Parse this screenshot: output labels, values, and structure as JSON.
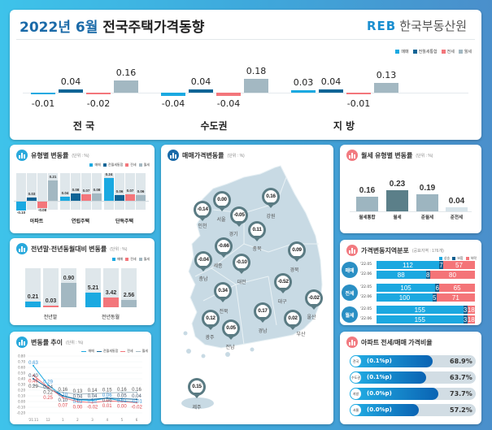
{
  "header": {
    "title_year": "2022년 6월",
    "title_main": "전국주택가격동향",
    "logo_mark": "REB",
    "logo_text": "한국부동산원"
  },
  "legend4": [
    "매매",
    "전월세통합",
    "전세",
    "월세"
  ],
  "colors": {
    "sale": "#1aa9e1",
    "combined": "#0f6496",
    "jeonse": "#f3767b",
    "monthly": "#a3b8c2",
    "up": "#1ba8e0",
    "flat": "#0e5e8e",
    "down": "#f47478"
  },
  "summary": {
    "groups": [
      {
        "name": "전 국",
        "values": [
          -0.01,
          0.04,
          -0.02,
          0.16
        ]
      },
      {
        "name": "수도권",
        "values": [
          -0.04,
          0.04,
          -0.04,
          0.18
        ]
      },
      {
        "name": "지 방",
        "values": [
          0.03,
          0.04,
          -0.01,
          0.13
        ]
      }
    ]
  },
  "type_card": {
    "title": "유형별 변동률",
    "unit": "(단위 : %)",
    "groups": [
      {
        "name": "아파트",
        "values": [
          -0.1,
          0.03,
          -0.08,
          0.21
        ]
      },
      {
        "name": "연립주택",
        "values": [
          0.04,
          0.08,
          0.07,
          0.08
        ]
      },
      {
        "name": "단독주택",
        "values": [
          0.24,
          0.06,
          0.07,
          0.06
        ]
      }
    ]
  },
  "yoy_card": {
    "title": "전년말·전년동월대비 변동률",
    "unit": "(단위 : %)",
    "legend": [
      "매매",
      "전세",
      "월세"
    ],
    "groups": [
      {
        "name": "전년말",
        "values": [
          0.21,
          0.03,
          0.9
        ]
      },
      {
        "name": "전년동월",
        "values": [
          5.21,
          3.42,
          2.56
        ]
      }
    ]
  },
  "trend_card": {
    "title": "변동률 추이",
    "unit": "(단위 : %)",
    "chart_data": {
      "type": "line",
      "x": [
        "'21.11",
        "12",
        "1",
        "2",
        "3",
        "4",
        "5",
        "6"
      ],
      "ylim": [
        -0.2,
        0.8
      ],
      "yticks": [
        "0.80",
        "0.70",
        "0.60",
        "0.50",
        "0.40",
        "0.30",
        "0.20",
        "0.10",
        "0.00",
        "-0.10",
        "-0.20"
      ],
      "series": [
        {
          "name": "매매",
          "values": [
            0.63,
            0.29,
            0.1,
            0.03,
            0.02,
            0.06,
            0.01,
            -0.01
          ]
        },
        {
          "name": "전월세통합",
          "values": [
            0.4,
            0.24,
            0.1,
            0.04,
            0.04,
            0.06,
            0.05,
            0.04
          ]
        },
        {
          "name": "전세",
          "values": [
            0.46,
            0.25,
            0.07,
            0.0,
            -0.02,
            0.01,
            0.0,
            -0.02
          ]
        },
        {
          "name": "월세",
          "values": [
            0.29,
            0.22,
            0.16,
            0.13,
            0.14,
            0.15,
            0.16,
            0.16
          ]
        }
      ]
    }
  },
  "map_card": {
    "title": "매매가격변동률",
    "unit": "(단위 : %)",
    "regions": [
      {
        "name": "인천",
        "value": "-0.14"
      },
      {
        "name": "서울",
        "value": "0.00"
      },
      {
        "name": "경기",
        "value": "-0.05"
      },
      {
        "name": "강원",
        "value": "0.16"
      },
      {
        "name": "충북",
        "value": "0.11"
      },
      {
        "name": "세종",
        "value": "-0.66"
      },
      {
        "name": "대전",
        "value": "-0.10"
      },
      {
        "name": "충남",
        "value": "-0.04"
      },
      {
        "name": "경북",
        "value": "0.09"
      },
      {
        "name": "대구",
        "value": "-0.52"
      },
      {
        "name": "울산",
        "value": "-0.02"
      },
      {
        "name": "전북",
        "value": "0.34"
      },
      {
        "name": "광주",
        "value": "0.12"
      },
      {
        "name": "전남",
        "value": "0.05"
      },
      {
        "name": "경남",
        "value": "0.17"
      },
      {
        "name": "부산",
        "value": "0.02"
      },
      {
        "name": "제주",
        "value": "0.15"
      }
    ]
  },
  "rent_card": {
    "title": "월세 유형별 변동률",
    "unit": "(단위 : %)",
    "items": [
      {
        "name": "월세통합",
        "value": 0.16
      },
      {
        "name": "월세",
        "value": 0.23
      },
      {
        "name": "준월세",
        "value": 0.19
      },
      {
        "name": "준전세",
        "value": 0.04
      }
    ]
  },
  "dist_card": {
    "title": "가격변동지역분포",
    "unit": "(공표지역 : 176개)",
    "legend": [
      "상승",
      "보합",
      "하락"
    ],
    "total": 176,
    "groups": [
      {
        "name": "매매",
        "rows": [
          {
            "period": "'22.05",
            "up": 112,
            "flat": 7,
            "down": 57
          },
          {
            "period": "'22.06",
            "up": 88,
            "flat": 8,
            "down": 80
          }
        ]
      },
      {
        "name": "전세",
        "rows": [
          {
            "period": "'22.05",
            "up": 105,
            "flat": 6,
            "down": 65
          },
          {
            "period": "'22.06",
            "up": 100,
            "flat": 5,
            "down": 71
          }
        ]
      },
      {
        "name": "월세",
        "rows": [
          {
            "period": "'22.05",
            "up": 155,
            "flat": 3,
            "down": 18
          },
          {
            "period": "'22.06",
            "up": 155,
            "flat": 3,
            "down": 18
          }
        ]
      }
    ]
  },
  "ratio_card": {
    "title": "아파트 전세/매매 가격비율",
    "rows": [
      {
        "region": "전국",
        "change": "(0.1%p)",
        "ratio": "68.9%",
        "value": 68.9
      },
      {
        "region": "수도권",
        "change": "(0.1%p)",
        "ratio": "63.7%",
        "value": 63.7
      },
      {
        "region": "지방",
        "change": "(0.0%p)",
        "ratio": "73.7%",
        "value": 73.7
      },
      {
        "region": "서울",
        "change": "(0.0%p)",
        "ratio": "57.2%",
        "value": 57.2
      }
    ]
  }
}
